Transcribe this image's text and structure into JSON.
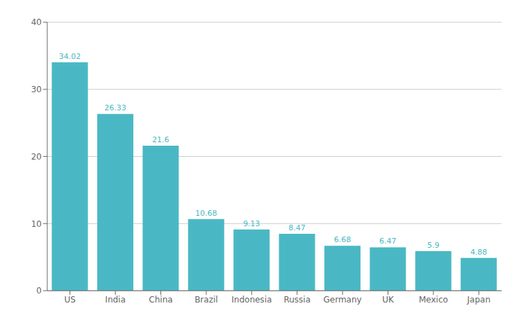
{
  "chart_data": {
    "type": "bar",
    "categories": [
      "US",
      "India",
      "China",
      "Brazil",
      "Indonesia",
      "Russia",
      "Germany",
      "UK",
      "Mexico",
      "Japan"
    ],
    "values": [
      34.02,
      26.33,
      21.6,
      10.68,
      9.13,
      8.47,
      6.68,
      6.47,
      5.9,
      4.88
    ],
    "color": "#4ab8c4",
    "ylim": [
      0,
      40
    ],
    "yticks": [
      0,
      10,
      20,
      30,
      40
    ],
    "grid": true,
    "data_labels": true
  }
}
